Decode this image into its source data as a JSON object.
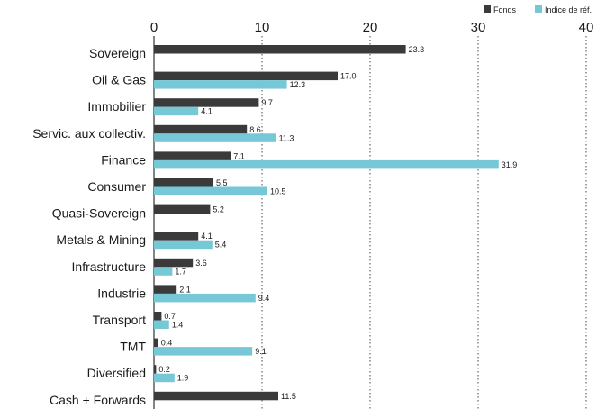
{
  "chart_data": {
    "type": "bar",
    "orientation": "horizontal",
    "title": "",
    "xlim": [
      0,
      40
    ],
    "xticks": [
      0,
      10,
      20,
      30,
      40
    ],
    "grid": "vertical dotted",
    "legend_position": "top-right",
    "categories": [
      "Sovereign",
      "Oil & Gas",
      "Immobilier",
      "Servic. aux collectiv.",
      "Finance",
      "Consumer",
      "Quasi-Sovereign",
      "Metals & Mining",
      "Infrastructure",
      "Industrie",
      "Transport",
      "TMT",
      "Diversified",
      "Cash + Forwards"
    ],
    "series": [
      {
        "name": "Fonds",
        "color": "#3a3a3a",
        "values": [
          23.3,
          17.0,
          9.7,
          8.6,
          7.1,
          5.5,
          5.2,
          4.1,
          3.6,
          2.1,
          0.7,
          0.4,
          0.2,
          11.5
        ],
        "labels": [
          "23.3",
          "17.0",
          "9.7",
          "8.6",
          "7.1",
          "5.5",
          "5.2",
          "4.1",
          "3.6",
          "2.1",
          "0.7",
          "0.4",
          "0.2",
          "11.5"
        ]
      },
      {
        "name": "Indice de réf.",
        "color": "#77c8d6",
        "values": [
          null,
          12.3,
          4.1,
          11.3,
          31.9,
          10.5,
          null,
          5.4,
          1.7,
          9.4,
          1.4,
          9.1,
          1.9,
          null
        ],
        "labels": [
          "",
          "12.3",
          "4.1",
          "11.3",
          "31.9",
          "10.5",
          "",
          "5.4",
          "1.7",
          "9.4",
          "1.4",
          "9.1",
          "1.9",
          ""
        ]
      }
    ]
  }
}
